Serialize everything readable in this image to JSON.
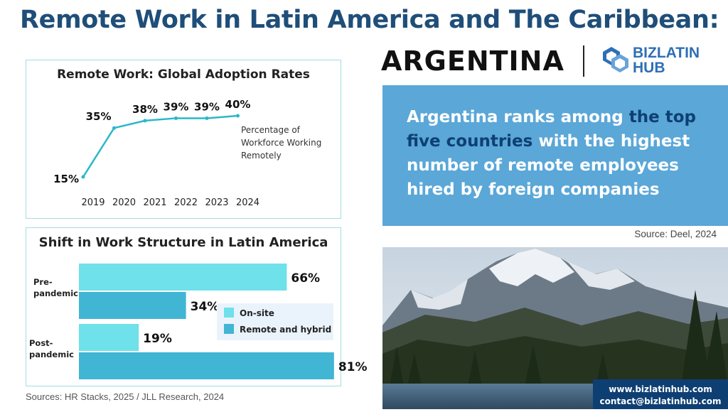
{
  "header": {
    "title": "Remote Work in Latin America and The Caribbean:",
    "country": "ARGENTINA",
    "logo_line1": "BIZLATIN",
    "logo_line2": "HUB"
  },
  "colors": {
    "title": "#1f4e79",
    "line": "#2ab7c9",
    "onsite": "#6ee1ea",
    "remote": "#41b5d4",
    "callout_bg": "#5aa7d8",
    "callout_highlight": "#0e3f73",
    "contact_bg": "#0e3f73"
  },
  "chart_data": [
    {
      "type": "line",
      "title": "Remote Work: Global Adoption Rates",
      "x": [
        "2019",
        "2020",
        "2021",
        "2022",
        "2023",
        "2024"
      ],
      "series": [
        {
          "name": "Percentage of Workforce Working Remotely",
          "values": [
            15,
            35,
            38,
            39,
            39,
            40
          ]
        }
      ],
      "data_labels": [
        "15%",
        "35%",
        "38%",
        "39%",
        "39%",
        "40%"
      ],
      "annotation": [
        "Percentage of",
        "Workforce Working",
        "Remotely"
      ],
      "ylim": [
        15,
        40
      ],
      "grid": false
    },
    {
      "type": "bar",
      "orientation": "horizontal",
      "title": "Shift in Work Structure in Latin America",
      "categories": [
        [
          "Pre-",
          "pandemic"
        ],
        [
          "Post-",
          "pandemic"
        ]
      ],
      "series": [
        {
          "name": "On-site",
          "values": [
            66,
            19
          ],
          "labels": [
            "66%",
            "19%"
          ]
        },
        {
          "name": "Remote and hybrid",
          "values": [
            34,
            81
          ],
          "labels": [
            "34%",
            "81%"
          ]
        }
      ],
      "xlim": [
        0,
        100
      ],
      "legend": "right"
    }
  ],
  "sources": "Sources: HR Stacks, 2025 /  JLL Research, 2024",
  "callout": {
    "part1": "Argentina ranks among ",
    "highlight": "the top five countries",
    "part2": " with the highest number of remote employees hired by foreign companies"
  },
  "callout_source": "Source: Deel, 2024",
  "contact": {
    "website": "www.bizlatinhub.com",
    "email": "contact@bizlatinhub.com"
  }
}
